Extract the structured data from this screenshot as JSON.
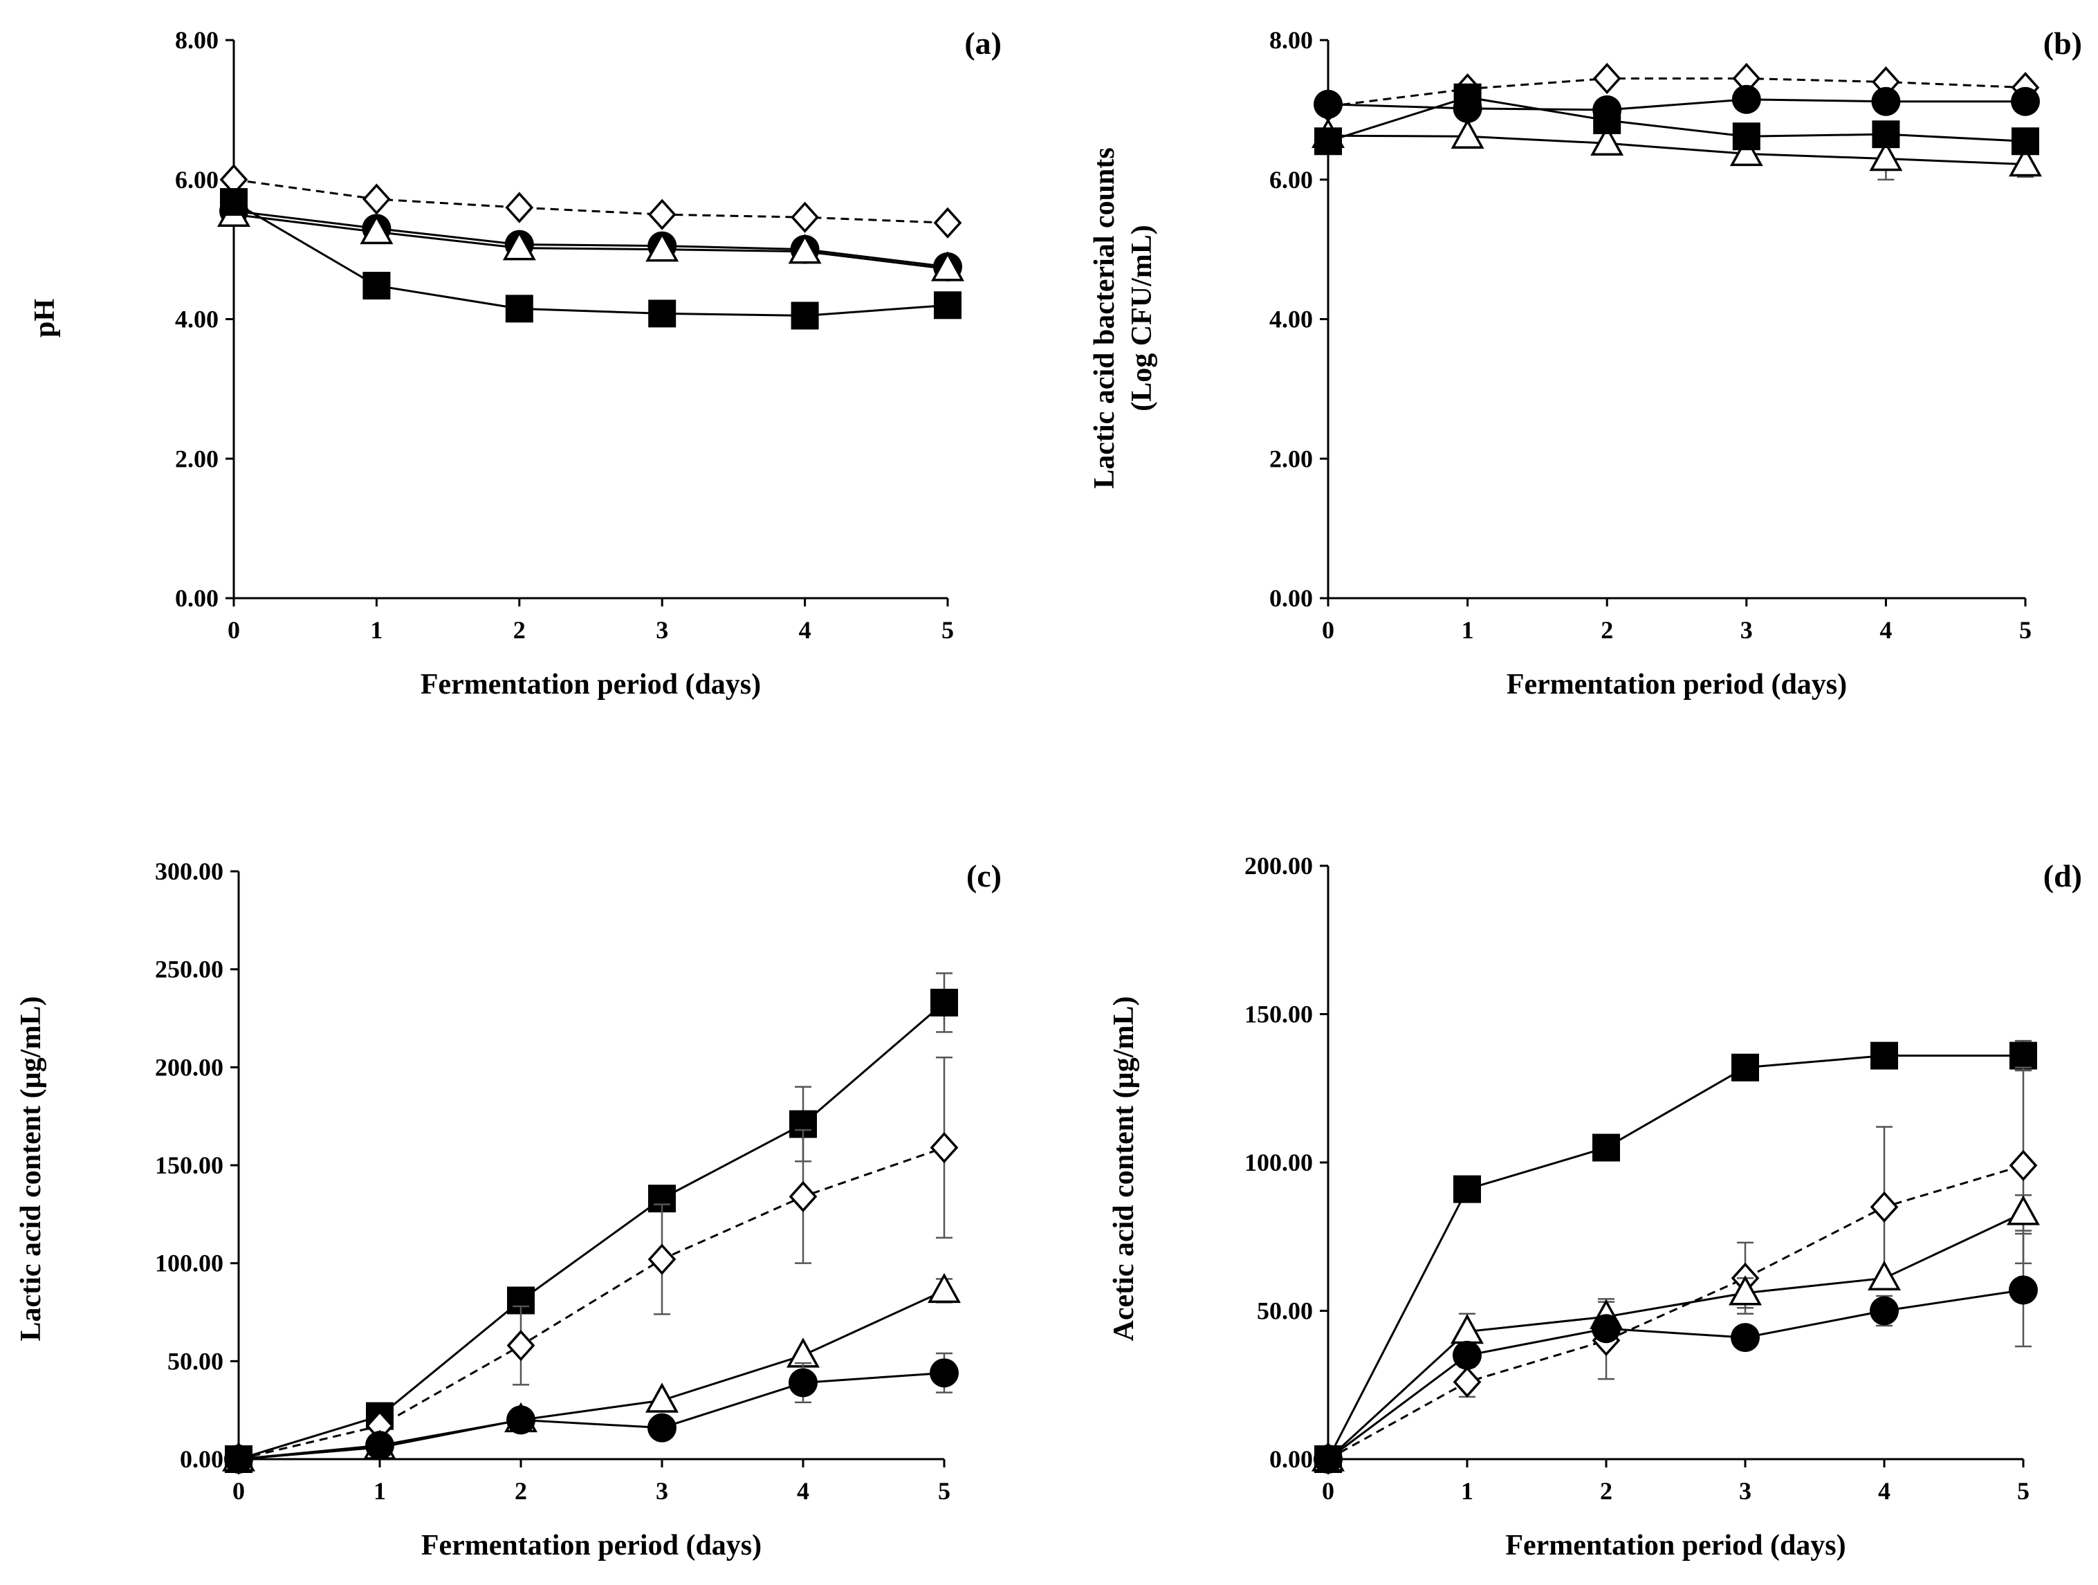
{
  "chart_data": [
    {
      "type": "line",
      "panel_label": "(a)",
      "title": "",
      "xlabel": "Fermentation period (days)",
      "ylabel_lines": [
        "pH"
      ],
      "x": [
        0,
        1,
        2,
        3,
        4,
        5
      ],
      "xticks": [
        "0",
        "1",
        "2",
        "3",
        "4",
        "5"
      ],
      "ylim": [
        0,
        8
      ],
      "yticks": [
        "0.00",
        "2.00",
        "4.00",
        "6.00",
        "8.00"
      ],
      "series": [
        {
          "name": "open diamond",
          "marker": "diamond-open",
          "dashed": true,
          "values": [
            6.0,
            5.72,
            5.6,
            5.5,
            5.46,
            5.38
          ],
          "errors": [
            0,
            0,
            0,
            0,
            0,
            0
          ]
        },
        {
          "name": "filled circle",
          "marker": "circle-filled",
          "dashed": false,
          "values": [
            5.55,
            5.3,
            5.07,
            5.05,
            5.0,
            4.75
          ],
          "errors": [
            0,
            0,
            0,
            0,
            0,
            0
          ]
        },
        {
          "name": "open triangle",
          "marker": "triangle-open",
          "dashed": false,
          "values": [
            5.5,
            5.25,
            5.02,
            5.0,
            4.97,
            4.72
          ],
          "errors": [
            0,
            0,
            0,
            0,
            0,
            0
          ]
        },
        {
          "name": "filled square",
          "marker": "square-filled",
          "dashed": false,
          "values": [
            5.68,
            4.48,
            4.15,
            4.08,
            4.05,
            4.2
          ],
          "errors": [
            0,
            0,
            0,
            0,
            0,
            0
          ]
        }
      ]
    },
    {
      "type": "line",
      "panel_label": "(b)",
      "title": "",
      "xlabel": "Fermentation period (days)",
      "ylabel_lines": [
        "Lactic acid bacterial counts",
        "(Log CFU/mL)"
      ],
      "x": [
        0,
        1,
        2,
        3,
        4,
        5
      ],
      "xticks": [
        "0",
        "1",
        "2",
        "3",
        "4",
        "5"
      ],
      "ylim": [
        0,
        8
      ],
      "yticks": [
        "0.00",
        "2.00",
        "4.00",
        "6.00",
        "8.00"
      ],
      "series": [
        {
          "name": "open diamond",
          "marker": "diamond-open",
          "dashed": true,
          "values": [
            7.05,
            7.3,
            7.45,
            7.45,
            7.4,
            7.32
          ],
          "errors": [
            0,
            0,
            0,
            0,
            0,
            0
          ]
        },
        {
          "name": "filled circle",
          "marker": "circle-filled",
          "dashed": false,
          "values": [
            7.08,
            7.02,
            7.0,
            7.15,
            7.12,
            7.12
          ],
          "errors": [
            0,
            0,
            0,
            0.1,
            0.1,
            0.1
          ]
        },
        {
          "name": "open triangle",
          "marker": "triangle-open",
          "dashed": false,
          "values": [
            6.63,
            6.62,
            6.52,
            6.37,
            6.3,
            6.22
          ],
          "errors": [
            0,
            0,
            0,
            0.1,
            0.3,
            0.18
          ]
        },
        {
          "name": "filled square",
          "marker": "square-filled",
          "dashed": false,
          "values": [
            6.55,
            7.18,
            6.85,
            6.62,
            6.65,
            6.55
          ],
          "errors": [
            0,
            0.1,
            0,
            0.1,
            0.1,
            0
          ]
        }
      ]
    },
    {
      "type": "line",
      "panel_label": "(c)",
      "title": "",
      "xlabel": "Fermentation period (days)",
      "ylabel_lines": [
        "Lactic acid content (µg/mL)"
      ],
      "x": [
        0,
        1,
        2,
        3,
        4,
        5
      ],
      "xticks": [
        "0",
        "1",
        "2",
        "3",
        "4",
        "5"
      ],
      "ylim": [
        0,
        300
      ],
      "yticks": [
        "0.00",
        "50.00",
        "100.00",
        "150.00",
        "200.00",
        "250.00",
        "300.00"
      ],
      "series": [
        {
          "name": "filled square",
          "marker": "square-filled",
          "dashed": false,
          "values": [
            0,
            22,
            81,
            133,
            171,
            233
          ],
          "errors": [
            0,
            0,
            0,
            5,
            19,
            15
          ]
        },
        {
          "name": "open diamond",
          "marker": "diamond-open",
          "dashed": true,
          "values": [
            0,
            17,
            58,
            102,
            134,
            159
          ],
          "errors": [
            0,
            0,
            20,
            28,
            34,
            46
          ]
        },
        {
          "name": "open triangle",
          "marker": "triangle-open",
          "dashed": false,
          "values": [
            0,
            6,
            20,
            30,
            53,
            86
          ],
          "errors": [
            0,
            0,
            0,
            0,
            0,
            6
          ]
        },
        {
          "name": "filled circle",
          "marker": "circle-filled",
          "dashed": false,
          "values": [
            0,
            7,
            20,
            16,
            39,
            44
          ],
          "errors": [
            0,
            0,
            0,
            0,
            10,
            10
          ]
        }
      ]
    },
    {
      "type": "line",
      "panel_label": "(d)",
      "title": "",
      "xlabel": "Fermentation period (days)",
      "ylabel_lines": [
        "Acetic acid content (µg/mL)"
      ],
      "x": [
        0,
        1,
        2,
        3,
        4,
        5
      ],
      "xticks": [
        "0",
        "1",
        "2",
        "3",
        "4",
        "5"
      ],
      "ylim": [
        0,
        200
      ],
      "yticks": [
        "0.00",
        "50.00",
        "100.00",
        "150.00",
        "200.00"
      ],
      "series": [
        {
          "name": "filled square",
          "marker": "square-filled",
          "dashed": false,
          "values": [
            0,
            91,
            105,
            132,
            136,
            136
          ],
          "errors": [
            0,
            4,
            0,
            0,
            0,
            5
          ]
        },
        {
          "name": "open diamond",
          "marker": "diamond-open",
          "dashed": true,
          "values": [
            0,
            26,
            40,
            61,
            85,
            99
          ],
          "errors": [
            0,
            5,
            13,
            12,
            27,
            33
          ]
        },
        {
          "name": "open triangle",
          "marker": "triangle-open",
          "dashed": false,
          "values": [
            0,
            43,
            48,
            56,
            61,
            83
          ],
          "errors": [
            0,
            6,
            6,
            5,
            0,
            6
          ]
        },
        {
          "name": "filled circle",
          "marker": "circle-filled",
          "dashed": false,
          "values": [
            0,
            35,
            44,
            41,
            50,
            57
          ],
          "errors": [
            0,
            0,
            0,
            0,
            5,
            19
          ]
        }
      ]
    }
  ]
}
